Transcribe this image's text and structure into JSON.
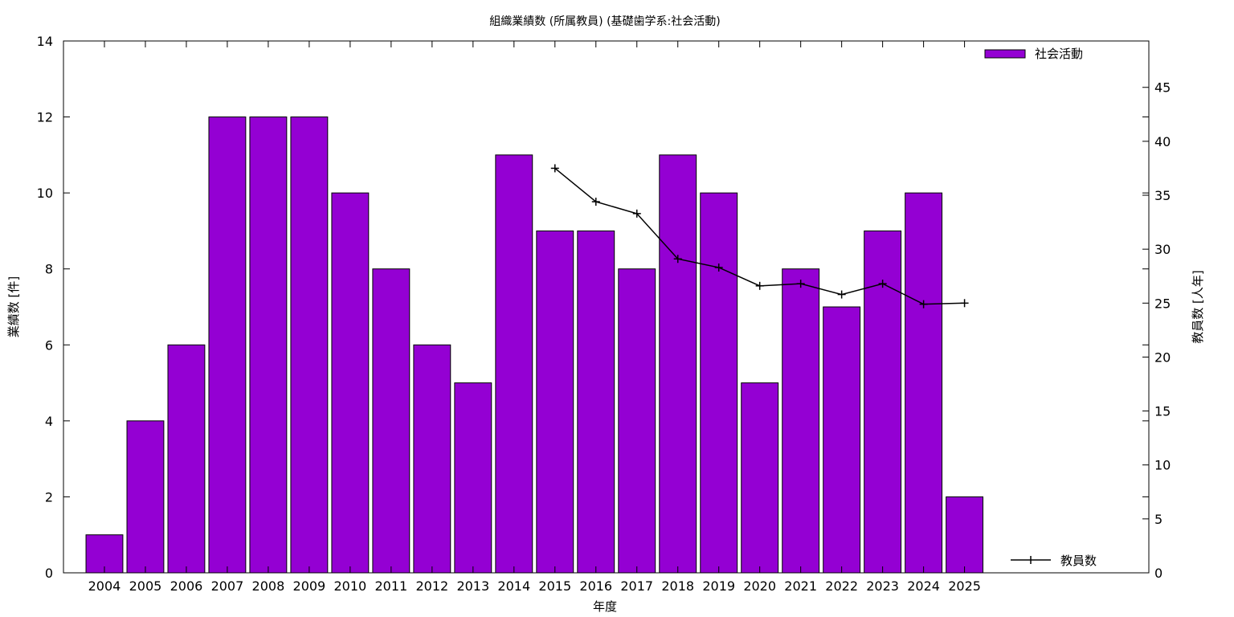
{
  "chart_data": {
    "type": "bar",
    "title": "組織業績数 (所属教員) (基礎歯学系:社会活動)",
    "xlabel": "年度",
    "ylabel": "業績数 [件]",
    "y2label": "教員数 [人年]",
    "categories": [
      "2004",
      "2005",
      "2006",
      "2007",
      "2008",
      "2009",
      "2010",
      "2011",
      "2012",
      "2013",
      "2014",
      "2015",
      "2016",
      "2017",
      "2018",
      "2019",
      "2020",
      "2021",
      "2022",
      "2023",
      "2024",
      "2025"
    ],
    "ylim": [
      0,
      14
    ],
    "yticks": [
      0,
      2,
      4,
      6,
      8,
      10,
      12,
      14
    ],
    "y2lim": [
      0,
      49.3
    ],
    "y2ticks": [
      0,
      5,
      10,
      15,
      20,
      25,
      30,
      35,
      40,
      45
    ],
    "legend_position": "top-right",
    "line_legend_position": "bottom-right",
    "series": [
      {
        "name": "社会活動",
        "type": "bar",
        "axis": "left",
        "color": "#9400D3",
        "values": [
          1,
          4,
          6,
          12,
          12,
          12,
          10,
          8,
          6,
          5,
          11,
          9,
          9,
          8,
          11,
          10,
          5,
          8,
          7,
          9,
          10,
          2
        ]
      },
      {
        "name": "教員数",
        "type": "line",
        "axis": "right",
        "color": "#000000",
        "x": [
          "2015",
          "2016",
          "2017",
          "2018",
          "2019",
          "2020",
          "2021",
          "2022",
          "2023",
          "2024",
          "2025"
        ],
        "values": [
          37.5,
          34.4,
          33.3,
          29.1,
          28.3,
          26.6,
          26.8,
          25.8,
          26.8,
          24.9,
          25.0
        ]
      }
    ]
  }
}
